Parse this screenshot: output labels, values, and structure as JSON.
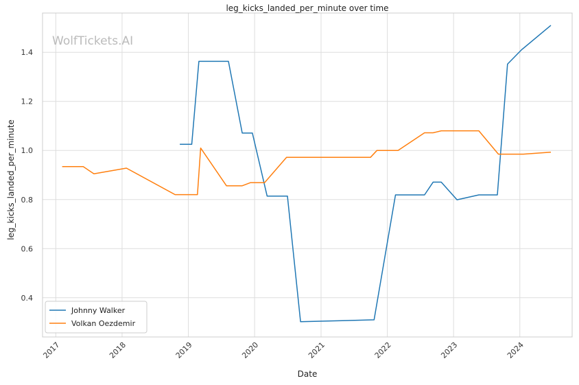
{
  "chart_data": {
    "type": "line",
    "title": "leg_kicks_landed_per_minute over time",
    "xlabel": "Date",
    "ylabel": "leg_kicks_landed_per_minute",
    "watermark": "WolfTickets.AI",
    "x_axis": "date",
    "xlim": [
      "2016-10-20",
      "2024-10-15"
    ],
    "ylim": [
      0.24,
      1.56
    ],
    "x_ticks": [
      "2017",
      "2018",
      "2019",
      "2020",
      "2021",
      "2022",
      "2023",
      "2024"
    ],
    "x_tick_dates": [
      "2017-01-01",
      "2018-01-01",
      "2019-01-01",
      "2020-01-01",
      "2021-01-01",
      "2022-01-01",
      "2023-01-01",
      "2024-01-01"
    ],
    "y_ticks": [
      0.4,
      0.6,
      0.8,
      1.0,
      1.2,
      1.4
    ],
    "y_tick_labels": [
      "0.4",
      "0.6",
      "0.8",
      "1.0",
      "1.2",
      "1.4"
    ],
    "grid": true,
    "legend_position": "lower-left",
    "series": [
      {
        "name": "Johnny Walker",
        "color": "#1f77b4",
        "points": [
          [
            "2018-11-15",
            1.025
          ],
          [
            "2019-01-20",
            1.025
          ],
          [
            "2019-02-28",
            1.363
          ],
          [
            "2019-08-10",
            1.363
          ],
          [
            "2019-10-25",
            1.071
          ],
          [
            "2019-12-20",
            1.071
          ],
          [
            "2020-03-10",
            0.814
          ],
          [
            "2020-06-30",
            0.814
          ],
          [
            "2020-09-10",
            0.302
          ],
          [
            "2021-10-20",
            0.31
          ],
          [
            "2022-02-15",
            0.819
          ],
          [
            "2022-07-25",
            0.819
          ],
          [
            "2022-09-10",
            0.871
          ],
          [
            "2022-10-25",
            0.871
          ],
          [
            "2023-01-20",
            0.799
          ],
          [
            "2023-05-20",
            0.819
          ],
          [
            "2023-08-30",
            0.819
          ],
          [
            "2023-10-25",
            1.352
          ],
          [
            "2024-01-10",
            1.41
          ],
          [
            "2024-06-20",
            1.51
          ]
        ]
      },
      {
        "name": "Volkan Oezdemir",
        "color": "#ff7f0e",
        "points": [
          [
            "2017-02-05",
            0.934
          ],
          [
            "2017-06-01",
            0.934
          ],
          [
            "2017-07-30",
            0.905
          ],
          [
            "2018-01-25",
            0.928
          ],
          [
            "2018-10-20",
            0.82
          ],
          [
            "2019-02-20",
            0.82
          ],
          [
            "2019-03-10",
            1.01
          ],
          [
            "2019-07-30",
            0.856
          ],
          [
            "2019-10-25",
            0.856
          ],
          [
            "2019-12-10",
            0.869
          ],
          [
            "2020-02-25",
            0.869
          ],
          [
            "2020-06-25",
            0.972
          ],
          [
            "2021-09-30",
            0.972
          ],
          [
            "2021-11-05",
            1.0
          ],
          [
            "2022-03-01",
            1.0
          ],
          [
            "2022-07-25",
            1.072
          ],
          [
            "2022-09-10",
            1.072
          ],
          [
            "2022-10-25",
            1.08
          ],
          [
            "2023-05-20",
            1.08
          ],
          [
            "2023-09-05",
            0.985
          ],
          [
            "2024-01-20",
            0.985
          ],
          [
            "2024-06-20",
            0.993
          ]
        ]
      }
    ]
  }
}
